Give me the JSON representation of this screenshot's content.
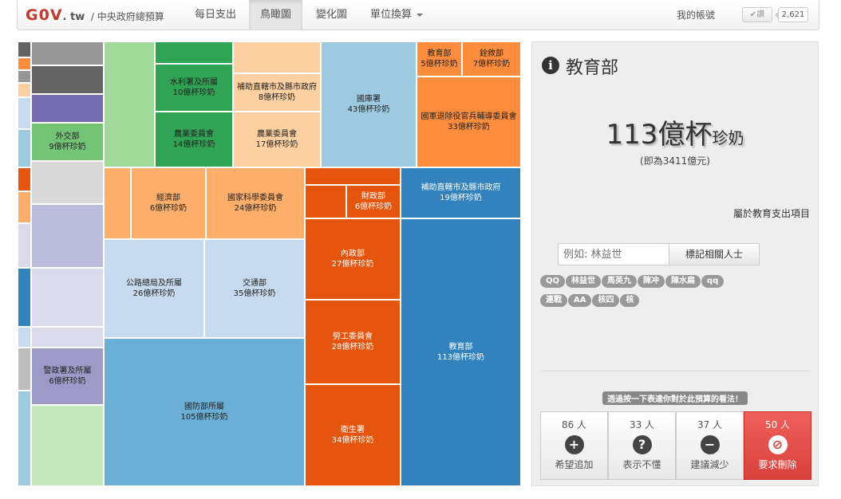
{
  "nav": {
    "brand_main": "G0V",
    "brand_tld": ". tw",
    "brand_sub": "/ 中央政府總預算",
    "items": [
      "每日支出",
      "鳥瞰圖",
      "變化圖",
      "單位換算"
    ],
    "account": "我的帳號",
    "like_label": "讚",
    "like_count": "2,621"
  },
  "treemap": {
    "cells": {
      "waijiao": {
        "name": "外交部",
        "value": "9億杯珍奶",
        "color": "#74c476"
      },
      "shuili": {
        "name": "水利署及所屬",
        "value": "10億杯珍奶",
        "color": "#31a354"
      },
      "nongye1": {
        "name": "農業委員會",
        "value": "14億杯珍奶",
        "color": "#31a354"
      },
      "buzhu1": {
        "name": "補助直轄市及縣市政府",
        "value": "8億杯珍奶",
        "color": "#fdd0a2"
      },
      "nongye2": {
        "name": "農業委員會",
        "value": "17億杯珍奶",
        "color": "#fdd0a2"
      },
      "guoku": {
        "name": "國庫署",
        "value": "43億杯珍奶",
        "color": "#9ecae1"
      },
      "jiaoyu_s": {
        "name": "教育部",
        "value": "5億杯珍奶",
        "color": "#fd8d3c"
      },
      "quanxu": {
        "name": "銓敘部",
        "value": "7億杯珍奶",
        "color": "#fd8d3c"
      },
      "tuichu": {
        "name": "國軍退除役官兵輔導委員會",
        "value": "33億杯珍奶",
        "color": "#fd8d3c"
      },
      "jingji": {
        "name": "經濟部",
        "value": "6億杯珍奶",
        "color": "#fdae6b"
      },
      "kexue": {
        "name": "國家科學委員會",
        "value": "24億杯珍奶",
        "color": "#fdae6b"
      },
      "caizheng": {
        "name": "財政部",
        "value": "6億杯珍奶",
        "color": "#e6550d"
      },
      "buzhu2": {
        "name": "補助直轄市及縣市政府",
        "value": "19億杯珍奶",
        "color": "#3182bd"
      },
      "neizheng": {
        "name": "內政部",
        "value": "27億杯珍奶",
        "color": "#e6550d"
      },
      "gonglu": {
        "name": "公路總局及所屬",
        "value": "26億杯珍奶",
        "color": "#c6dbef"
      },
      "jiaotong": {
        "name": "交通部",
        "value": "35億杯珍奶",
        "color": "#c6dbef"
      },
      "laogong": {
        "name": "勞工委員會",
        "value": "28億杯珍奶",
        "color": "#e6550d"
      },
      "jiaoyu_l": {
        "name": "教育部",
        "value": "113億杯珍奶",
        "color": "#3182bd"
      },
      "jingzheng": {
        "name": "警政署及所屬",
        "value": "6億杯珍奶",
        "color": "#9e9ac8"
      },
      "guofang": {
        "name": "國防部所屬",
        "value": "105億杯珍奶",
        "color": "#6baed6"
      },
      "weisheng": {
        "name": "衛生署",
        "value": "34億杯珍奶",
        "color": "#e6550d"
      }
    }
  },
  "panel": {
    "title": "教育部",
    "big_number": "113",
    "big_unit": "億杯",
    "big_suffix": "珍奶",
    "sub_value": "(即為3411億元)",
    "related_link": "屬於教育支出項目",
    "tag_placeholder": "例如: 林益世",
    "tag_button": "標記相關人士",
    "tags": [
      "QQ",
      "林益世",
      "馬英九",
      "陳冲",
      "陳水扁",
      "qq",
      "連戰",
      "AA",
      "核四",
      "核"
    ],
    "vote_prompt": "透過按一下表達你對於此預算的看法！",
    "votes": [
      {
        "count": "86 人",
        "label": "希望追加",
        "icon": "+"
      },
      {
        "count": "33 人",
        "label": "表示不懂",
        "icon": "?"
      },
      {
        "count": "37 人",
        "label": "建議減少",
        "icon": "−"
      },
      {
        "count": "50 人",
        "label": "要求刪除",
        "icon": "⊘"
      }
    ]
  }
}
